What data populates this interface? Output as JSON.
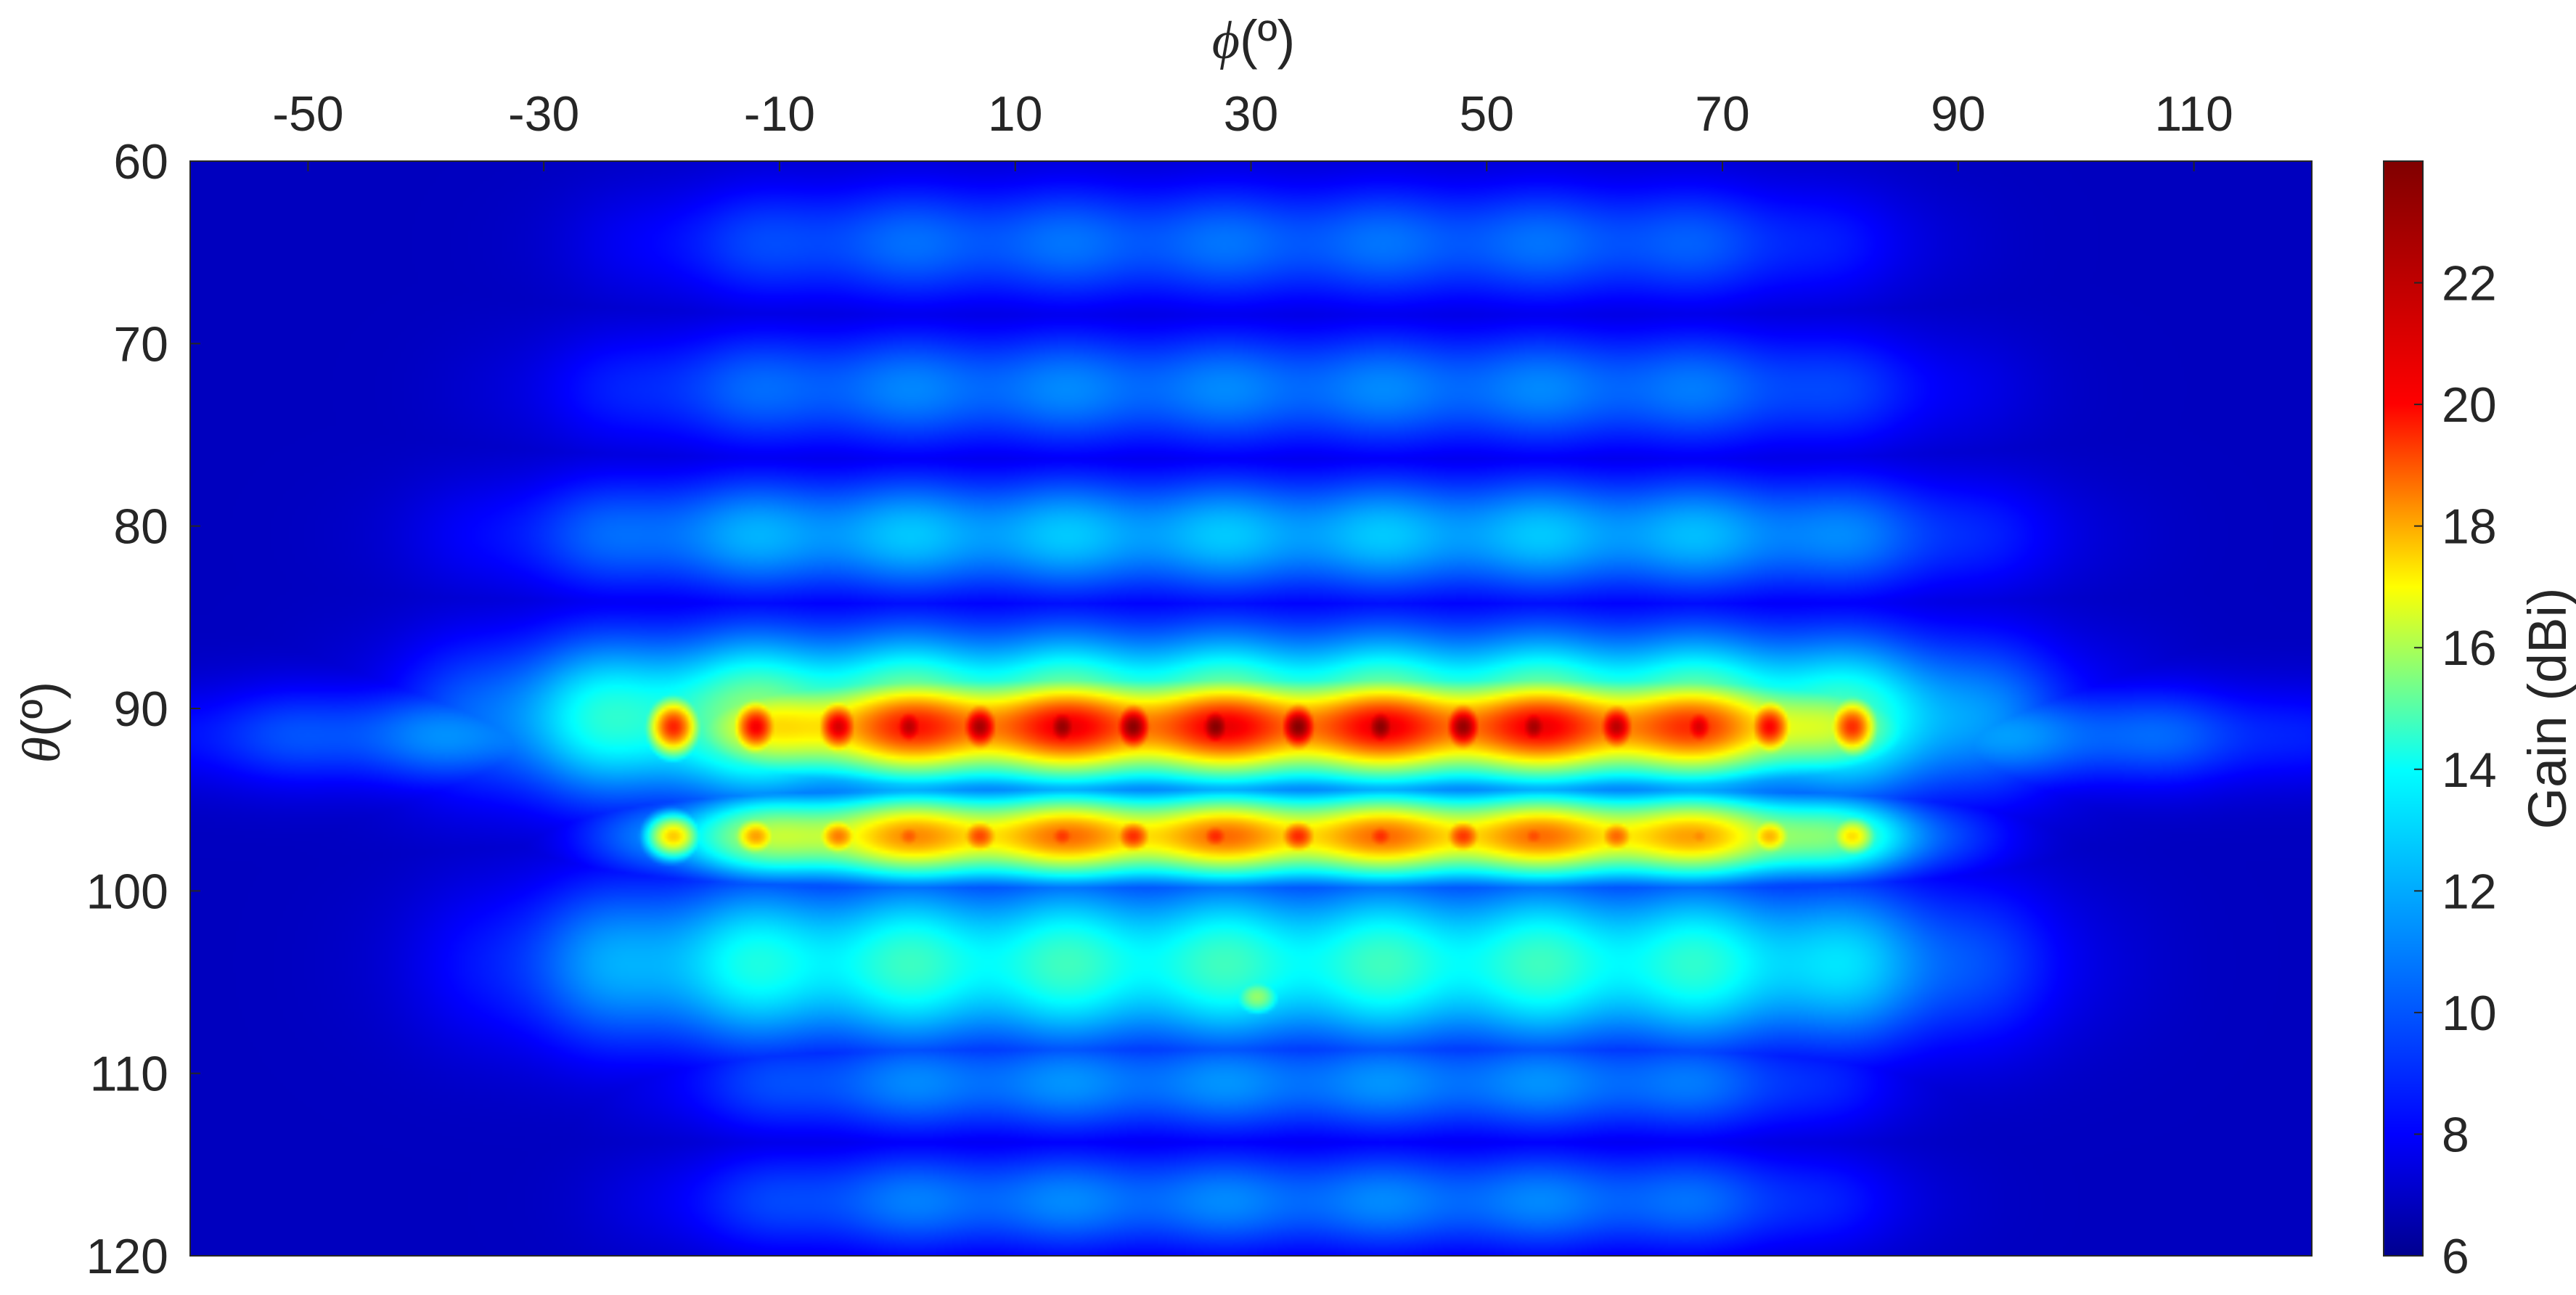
{
  "chart_data": {
    "type": "heatmap",
    "title": "",
    "xlabel": {
      "symbol": "ϕ",
      "unit": "(º)"
    },
    "ylabel": {
      "symbol": "θ",
      "unit": "(º)"
    },
    "xlim": [
      -60,
      120
    ],
    "ylim": [
      60,
      120
    ],
    "y_reversed": true,
    "x_ticks": [
      -50,
      -30,
      -10,
      10,
      30,
      50,
      70,
      90,
      110
    ],
    "x_tick_labels": [
      "-50",
      "-30",
      "-10",
      "10",
      "30",
      "50",
      "70",
      "90",
      "110"
    ],
    "y_ticks": [
      60,
      70,
      80,
      90,
      100,
      110,
      120
    ],
    "y_tick_labels": [
      "60",
      "70",
      "80",
      "90",
      "100",
      "110",
      "120"
    ],
    "colorbar": {
      "label": "Gain (dBi)",
      "range": [
        6,
        24
      ],
      "ticks": [
        6,
        8,
        10,
        12,
        14,
        16,
        18,
        20,
        22
      ],
      "tick_labels": [
        "6",
        "8",
        "10",
        "12",
        "14",
        "16",
        "18",
        "20",
        "22"
      ],
      "colormap": "jet",
      "colormap_stops": [
        "#00008f",
        "#0000ff",
        "#00ffff",
        "#ffff00",
        "#ff0000",
        "#800000"
      ]
    },
    "grid": false,
    "legend": "colorbar-right",
    "bands": [
      {
        "theta_center": 64.5,
        "theta_halfwidth": 3.4,
        "phi_min": -22,
        "phi_max": 83,
        "peak_gain": 9.4
      },
      {
        "theta_center": 72.5,
        "theta_halfwidth": 3.4,
        "phi_min": -27,
        "phi_max": 88,
        "peak_gain": 9.8
      },
      {
        "theta_center": 80.5,
        "theta_halfwidth": 3.4,
        "phi_min": -33,
        "phi_max": 93,
        "peak_gain": 11.0
      },
      {
        "theta_center": 90.5,
        "theta_halfwidth": 4.6,
        "phi_min": -36,
        "phi_max": 95,
        "peak_gain": 15.5
      },
      {
        "theta_center": 91.5,
        "theta_halfwidth": 2.8,
        "phi_min": -60,
        "phi_max": 120,
        "peak_gain": 10.8
      },
      {
        "theta_center": 91.0,
        "theta_halfwidth": 3.0,
        "phi_min": -20,
        "phi_max": 86,
        "peak_gain": 22.0
      },
      {
        "theta_center": 97.0,
        "theta_halfwidth": 2.4,
        "phi_min": -20,
        "phi_max": 86,
        "peak_gain": 19.6
      },
      {
        "theta_center": 104.0,
        "theta_halfwidth": 4.8,
        "phi_min": -32,
        "phi_max": 93,
        "peak_gain": 13.2
      },
      {
        "theta_center": 110.5,
        "theta_halfwidth": 3.0,
        "phi_min": -18,
        "phi_max": 82,
        "peak_gain": 10.0
      },
      {
        "theta_center": 117.0,
        "theta_halfwidth": 3.0,
        "phi_min": -18,
        "phi_max": 82,
        "peak_gain": 9.8
      }
    ],
    "main_beam_lobes": {
      "theta": 91.0,
      "phi": [
        -19,
        -12,
        -5,
        1,
        7,
        14,
        20,
        27,
        34,
        41,
        48,
        54,
        61,
        68,
        74,
        81
      ],
      "gain": [
        21.0,
        21.8,
        22.4,
        22.9,
        23.3,
        23.6,
        23.8,
        23.9,
        23.9,
        23.8,
        23.6,
        23.3,
        22.9,
        22.3,
        21.6,
        20.8
      ]
    },
    "second_row_lobes": {
      "theta": 97.0,
      "phi": [
        -19,
        -12,
        -5,
        1,
        7,
        14,
        20,
        27,
        34,
        41,
        48,
        54,
        61,
        68,
        74,
        81
      ],
      "gain": [
        17.8,
        18.6,
        19.3,
        19.9,
        20.3,
        20.6,
        20.8,
        20.9,
        20.9,
        20.8,
        20.6,
        20.2,
        19.7,
        19.0,
        18.2,
        17.4
      ]
    },
    "hot_spot": {
      "phi": 30.5,
      "theta": 105.8,
      "gain": 14.8
    }
  }
}
